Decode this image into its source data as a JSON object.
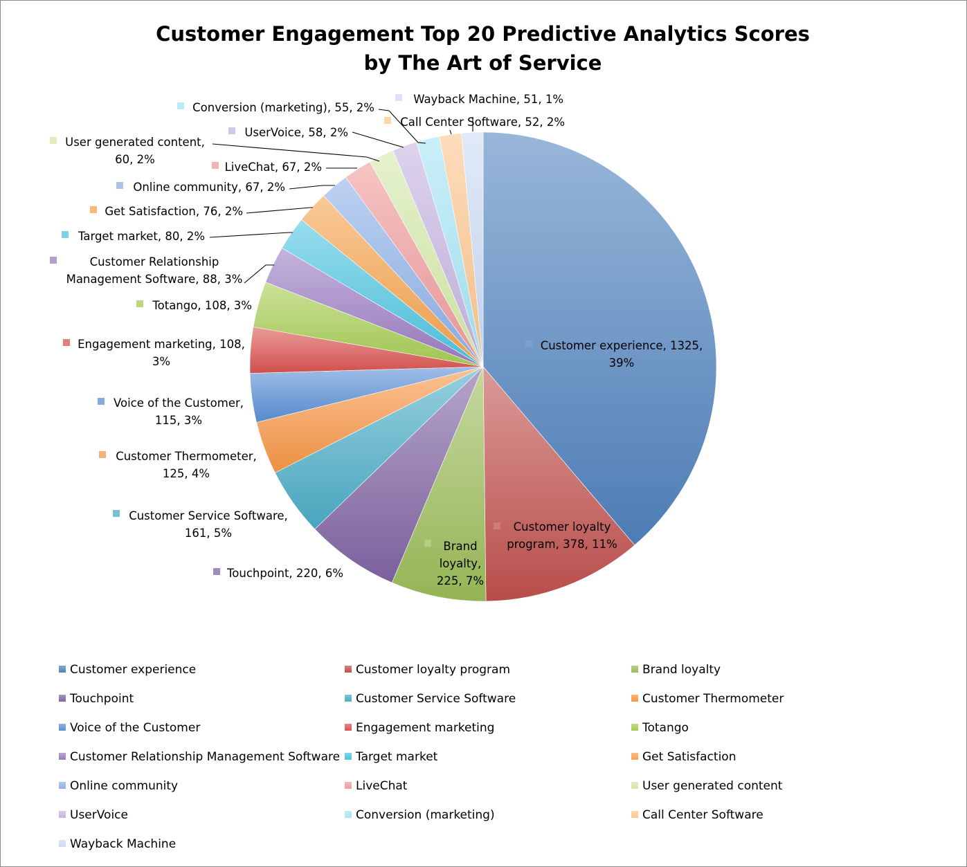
{
  "chart_data": {
    "type": "pie",
    "title": [
      "Customer Engagement Top 20 Predictive Analytics Scores",
      "by The Art of Service"
    ],
    "slices": [
      {
        "name": "Customer experience",
        "value": 1325,
        "pct": "39%",
        "color": "#4f81bd",
        "label": [
          "Customer experience, 1325,",
          "39%"
        ]
      },
      {
        "name": "Customer loyalty program",
        "value": 378,
        "pct": "11%",
        "color": "#c0504d",
        "label": [
          "Customer loyalty",
          "program, 378, 11%"
        ]
      },
      {
        "name": "Brand loyalty",
        "value": 225,
        "pct": "7%",
        "color": "#9bbb59",
        "label": [
          "Brand",
          "loyalty,",
          "225, 7%"
        ]
      },
      {
        "name": "Touchpoint",
        "value": 220,
        "pct": "6%",
        "color": "#8064a2",
        "label": [
          "Touchpoint, 220, 6%"
        ]
      },
      {
        "name": "Customer Service Software",
        "value": 161,
        "pct": "5%",
        "color": "#4bacc6",
        "label": [
          "Customer Service Software,",
          "161, 5%"
        ]
      },
      {
        "name": "Customer Thermometer",
        "value": 125,
        "pct": "4%",
        "color": "#f79646",
        "label": [
          "Customer Thermometer,",
          "125, 4%"
        ]
      },
      {
        "name": "Voice of the Customer",
        "value": 115,
        "pct": "3%",
        "color": "#5b8fd6",
        "label": [
          "Voice of the Customer,",
          "115, 3%"
        ]
      },
      {
        "name": "Engagement marketing",
        "value": 108,
        "pct": "3%",
        "color": "#d9534f",
        "label": [
          "Engagement marketing, 108,",
          "3%"
        ]
      },
      {
        "name": "Totango",
        "value": 108,
        "pct": "3%",
        "color": "#a6cc52",
        "label": [
          "Totango, 108, 3%"
        ]
      },
      {
        "name": "Customer Relationship Management Software",
        "value": 88,
        "pct": "3%",
        "color": "#9a7cc2",
        "label": [
          "Customer Relationship",
          "Management Software, 88, 3%"
        ]
      },
      {
        "name": "Target market",
        "value": 80,
        "pct": "2%",
        "color": "#4dc4e0",
        "label": [
          "Target market, 80, 2%"
        ]
      },
      {
        "name": "Get Satisfaction",
        "value": 76,
        "pct": "2%",
        "color": "#f5a24c",
        "label": [
          "Get Satisfaction, 76, 2%"
        ]
      },
      {
        "name": "Online community",
        "value": 67,
        "pct": "2%",
        "color": "#8db0e6",
        "label": [
          "Online community, 67, 2%"
        ]
      },
      {
        "name": "LiveChat",
        "value": 67,
        "pct": "2%",
        "color": "#ef9a9a",
        "label": [
          "LiveChat, 67, 2%"
        ]
      },
      {
        "name": "User generated content",
        "value": 60,
        "pct": "2%",
        "color": "#d3e8a8",
        "label": [
          "User generated content,",
          "60, 2%"
        ]
      },
      {
        "name": "UserVoice",
        "value": 58,
        "pct": "2%",
        "color": "#c5b3e0",
        "label": [
          "UserVoice, 58, 2%"
        ]
      },
      {
        "name": "Conversion (marketing)",
        "value": 55,
        "pct": "2%",
        "color": "#a6e4f4",
        "label": [
          "Conversion (marketing), 55, 2%"
        ]
      },
      {
        "name": "Call Center Software",
        "value": 52,
        "pct": "2%",
        "color": "#fbc58e",
        "label": [
          "Call Center Software, 52, 2%"
        ]
      },
      {
        "name": "Wayback Machine",
        "value": 51,
        "pct": "1%",
        "color": "#c9daf3",
        "label": [
          "Wayback Machine, 51, 1%"
        ]
      }
    ],
    "legend_position": "bottom"
  }
}
